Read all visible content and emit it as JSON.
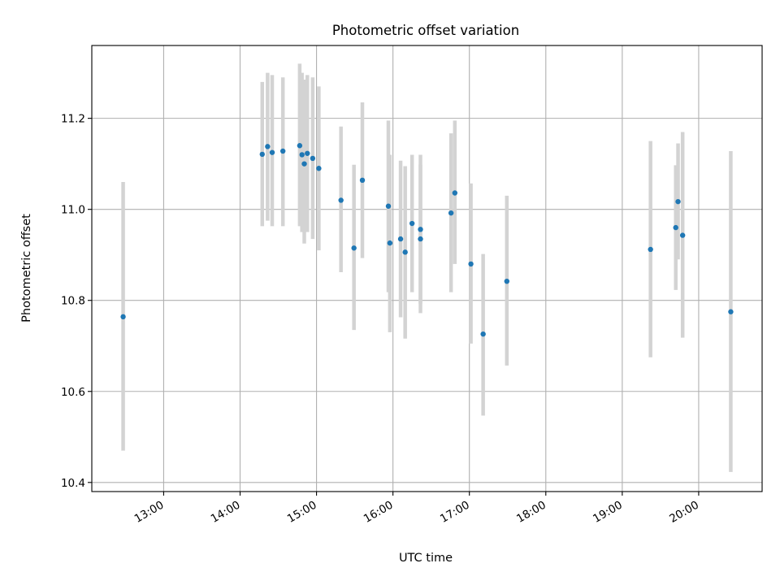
{
  "chart_data": {
    "type": "scatter",
    "title": "Photometric offset variation",
    "xlabel": "UTC time",
    "ylabel": "Photometric offset",
    "x_unit": "hours UTC",
    "xlim": [
      12.06,
      20.83
    ],
    "ylim": [
      10.38,
      11.36
    ],
    "grid": true,
    "x_ticks": [
      {
        "value": 13,
        "label": "13:00"
      },
      {
        "value": 14,
        "label": "14:00"
      },
      {
        "value": 15,
        "label": "15:00"
      },
      {
        "value": 16,
        "label": "16:00"
      },
      {
        "value": 17,
        "label": "17:00"
      },
      {
        "value": 18,
        "label": "18:00"
      },
      {
        "value": 19,
        "label": "19:00"
      },
      {
        "value": 20,
        "label": "20:00"
      }
    ],
    "y_ticks": [
      {
        "value": 10.4,
        "label": "10.4"
      },
      {
        "value": 10.6,
        "label": "10.6"
      },
      {
        "value": 10.8,
        "label": "10.8"
      },
      {
        "value": 11.0,
        "label": "11.0"
      },
      {
        "value": 11.2,
        "label": "11.2"
      }
    ],
    "colors": {
      "point": "#1f77b4",
      "error_bar": "#d3d3d3",
      "grid": "#b0b0b0",
      "axes": "#000000"
    },
    "points": [
      {
        "x": 12.47,
        "y": 10.764,
        "lo": 10.47,
        "hi": 11.06
      },
      {
        "x": 14.29,
        "y": 11.121,
        "lo": 10.963,
        "hi": 11.28
      },
      {
        "x": 14.36,
        "y": 11.138,
        "lo": 10.975,
        "hi": 11.3
      },
      {
        "x": 14.42,
        "y": 11.125,
        "lo": 10.963,
        "hi": 11.295
      },
      {
        "x": 14.56,
        "y": 11.128,
        "lo": 10.963,
        "hi": 11.29
      },
      {
        "x": 14.78,
        "y": 11.14,
        "lo": 10.963,
        "hi": 11.32
      },
      {
        "x": 14.81,
        "y": 11.12,
        "lo": 10.95,
        "hi": 11.3
      },
      {
        "x": 14.84,
        "y": 11.1,
        "lo": 10.925,
        "hi": 11.285
      },
      {
        "x": 14.88,
        "y": 11.123,
        "lo": 10.95,
        "hi": 11.295
      },
      {
        "x": 14.95,
        "y": 11.112,
        "lo": 10.935,
        "hi": 11.29
      },
      {
        "x": 15.03,
        "y": 11.09,
        "lo": 10.91,
        "hi": 11.27
      },
      {
        "x": 15.32,
        "y": 11.02,
        "lo": 10.862,
        "hi": 11.182
      },
      {
        "x": 15.49,
        "y": 10.915,
        "lo": 10.735,
        "hi": 11.098
      },
      {
        "x": 15.6,
        "y": 11.064,
        "lo": 10.893,
        "hi": 11.235
      },
      {
        "x": 15.94,
        "y": 11.007,
        "lo": 10.818,
        "hi": 11.195
      },
      {
        "x": 15.96,
        "y": 10.926,
        "lo": 10.73,
        "hi": 11.12
      },
      {
        "x": 16.1,
        "y": 10.935,
        "lo": 10.763,
        "hi": 11.107
      },
      {
        "x": 16.16,
        "y": 10.906,
        "lo": 10.716,
        "hi": 11.095
      },
      {
        "x": 16.25,
        "y": 10.969,
        "lo": 10.818,
        "hi": 11.12
      },
      {
        "x": 16.36,
        "y": 10.956,
        "lo": 10.793,
        "hi": 11.12
      },
      {
        "x": 16.36,
        "y": 10.935,
        "lo": 10.772,
        "hi": 11.098
      },
      {
        "x": 16.76,
        "y": 10.992,
        "lo": 10.818,
        "hi": 11.167
      },
      {
        "x": 16.81,
        "y": 11.036,
        "lo": 10.88,
        "hi": 11.195
      },
      {
        "x": 17.02,
        "y": 10.88,
        "lo": 10.705,
        "hi": 11.057
      },
      {
        "x": 17.18,
        "y": 10.726,
        "lo": 10.547,
        "hi": 10.902
      },
      {
        "x": 17.49,
        "y": 10.842,
        "lo": 10.657,
        "hi": 11.03
      },
      {
        "x": 19.37,
        "y": 10.912,
        "lo": 10.675,
        "hi": 11.15
      },
      {
        "x": 19.7,
        "y": 10.96,
        "lo": 10.823,
        "hi": 11.097
      },
      {
        "x": 19.73,
        "y": 11.017,
        "lo": 10.89,
        "hi": 11.145
      },
      {
        "x": 19.79,
        "y": 10.943,
        "lo": 10.718,
        "hi": 11.17
      },
      {
        "x": 20.42,
        "y": 10.775,
        "lo": 10.423,
        "hi": 11.128
      }
    ]
  }
}
